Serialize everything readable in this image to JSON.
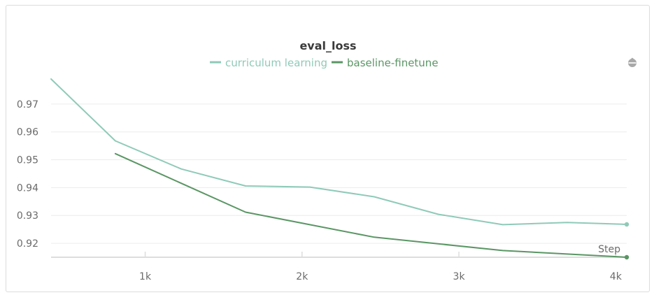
{
  "chart_data": {
    "type": "line",
    "title": "eval_loss",
    "xlabel": "Step",
    "ylabel": "",
    "xlim": [
      400,
      4070
    ],
    "ylim": [
      0.915,
      0.979
    ],
    "xticks": [
      1000,
      2000,
      3000,
      4000
    ],
    "xtick_labels": [
      "1k",
      "2k",
      "3k",
      "4k"
    ],
    "yticks": [
      0.92,
      0.93,
      0.94,
      0.95,
      0.96,
      0.97
    ],
    "ytick_labels": [
      "0.92",
      "0.93",
      "0.94",
      "0.95",
      "0.96",
      "0.97"
    ],
    "grid": true,
    "legend_position": "top-center",
    "series": [
      {
        "name": "curriculum learning",
        "color": "#8fcab8",
        "x": [
          400,
          810,
          1230,
          1640,
          2050,
          2460,
          2870,
          3280,
          3690,
          4070
        ],
        "y": [
          0.979,
          0.9568,
          0.9467,
          0.9406,
          0.9402,
          0.9367,
          0.9304,
          0.9267,
          0.9275,
          0.9268
        ]
      },
      {
        "name": "baseline-finetune",
        "color": "#5a9664",
        "x": [
          810,
          1640,
          2460,
          3280,
          4070
        ],
        "y": [
          0.9522,
          0.9312,
          0.9222,
          0.9174,
          0.915
        ]
      }
    ]
  }
}
